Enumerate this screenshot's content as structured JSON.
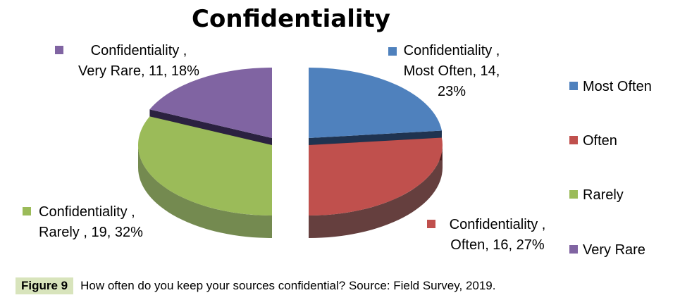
{
  "chart_data": {
    "type": "pie",
    "title": "Confidentiality",
    "series_name": "Confidentiality",
    "categories": [
      "Most Often",
      "Often",
      "Rarely",
      "Very Rare"
    ],
    "values": [
      14,
      16,
      19,
      11
    ],
    "percents": [
      "23%",
      "27%",
      "32%",
      "18%"
    ],
    "data_labels": [
      [
        "Confidentiality ,",
        "Most Often, 14,",
        "23%"
      ],
      [
        "Confidentiality ,",
        "Often, 16, 27%"
      ],
      [
        "Confidentiality ,",
        "Rarely , 19, 32%"
      ],
      [
        "Confidentiality ,",
        "Very Rare, 11, 18%"
      ]
    ],
    "colors": [
      "#4f81bd",
      "#c0504d",
      "#9bbb59",
      "#8064a2"
    ],
    "side_colors": [
      "#1f3350",
      "#4a1d1c",
      "#5c7531",
      "#2b2140"
    ],
    "legend_position": "right",
    "exploded": true,
    "style": "3d"
  },
  "caption": {
    "figure_label": "Figure 9",
    "text": "How often do you keep your sources confidential? Source: Field Survey, 2019."
  }
}
